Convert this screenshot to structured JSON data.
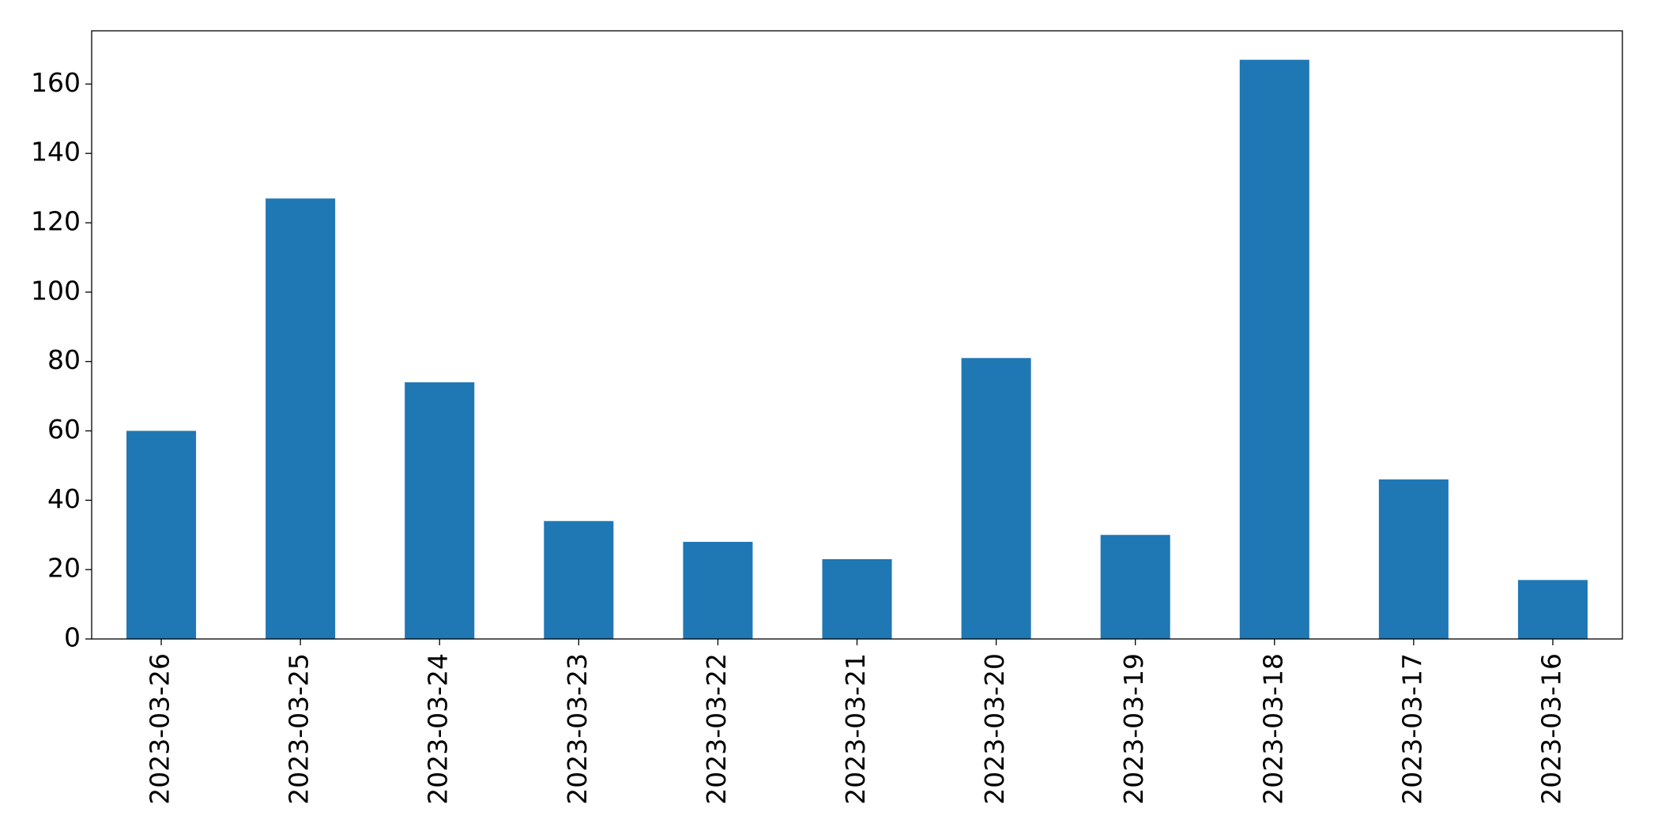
{
  "chart_data": {
    "type": "bar",
    "categories": [
      "2023-03-26",
      "2023-03-25",
      "2023-03-24",
      "2023-03-23",
      "2023-03-22",
      "2023-03-21",
      "2023-03-20",
      "2023-03-19",
      "2023-03-18",
      "2023-03-17",
      "2023-03-16"
    ],
    "values": [
      60,
      127,
      74,
      34,
      28,
      23,
      81,
      30,
      167,
      46,
      17
    ],
    "color": "#1f77b4",
    "ylim": [
      0,
      175.35
    ],
    "yticks": [
      0,
      20,
      40,
      60,
      80,
      100,
      120,
      140,
      160
    ],
    "grid": false
  }
}
